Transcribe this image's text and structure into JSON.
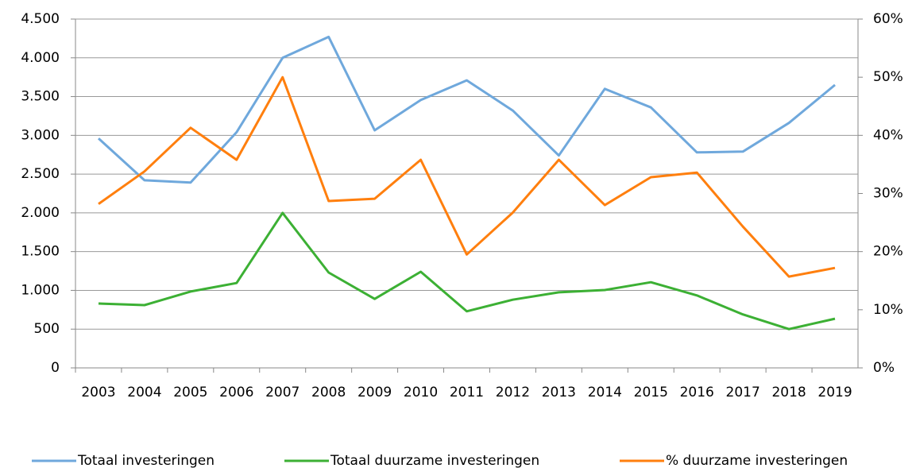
{
  "chart_data": {
    "type": "line",
    "categories": [
      "2003",
      "2004",
      "2005",
      "2006",
      "2007",
      "2008",
      "2009",
      "2010",
      "2011",
      "2012",
      "2013",
      "2014",
      "2015",
      "2016",
      "2017",
      "2018",
      "2019"
    ],
    "series": [
      {
        "name": "Totaal investeringen",
        "color": "#6fa8dc",
        "values": [
          2960,
          2420,
          2390,
          3040,
          4000,
          4270,
          3065,
          3455,
          3710,
          3320,
          2740,
          3600,
          3360,
          2780,
          2790,
          3160,
          3650
        ]
      },
      {
        "name": "Totaal duurzame investeringen",
        "color": "#3cb034",
        "values": [
          830,
          810,
          985,
          1095,
          2000,
          1230,
          890,
          1240,
          730,
          880,
          975,
          1005,
          1105,
          935,
          690,
          500,
          635
        ]
      },
      {
        "name": "% duurzame investeringen",
        "color": "#ff7f0e",
        "axis": "y2",
        "values": [
          28.2,
          33.8,
          41.3,
          35.8,
          50.0,
          28.7,
          29.1,
          35.8,
          19.5,
          26.7,
          35.8,
          28.0,
          32.8,
          33.6,
          24.3,
          15.7,
          17.2
        ]
      }
    ],
    "ylim": [
      0,
      4500
    ],
    "yticks": [
      0,
      500,
      {
        "value": 1000,
        "label": "1.000"
      },
      {
        "value": 1500,
        "label": "1.500"
      },
      {
        "value": 2000,
        "label": "2.000"
      },
      {
        "value": 2500,
        "label": "2.500"
      },
      {
        "value": 3000,
        "label": "3.000"
      },
      {
        "value": 3500,
        "label": "3.500"
      },
      {
        "value": 4000,
        "label": "4.000"
      },
      {
        "value": 4500,
        "label": "4.500"
      }
    ],
    "y2lim": [
      0,
      60
    ],
    "y2ticks": [
      {
        "value": 0,
        "label": "0%"
      },
      {
        "value": 10,
        "label": "10%"
      },
      {
        "value": 20,
        "label": "20%"
      },
      {
        "value": 30,
        "label": "30%"
      },
      {
        "value": 40,
        "label": "40%"
      },
      {
        "value": 50,
        "label": "50%"
      },
      {
        "value": 60,
        "label": "60%"
      }
    ],
    "grid": true,
    "legend": "bottom"
  }
}
